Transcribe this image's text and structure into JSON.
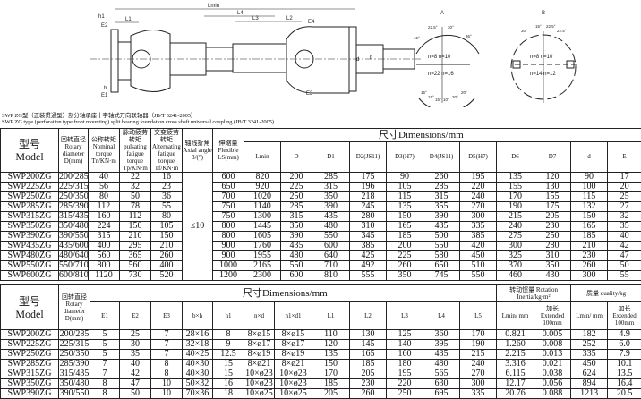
{
  "drawing": {
    "labels": {
      "lmin": "Lmin",
      "l1": "L1",
      "l2": "L2",
      "l3": "L3",
      "l4": "L4",
      "h1": "h1",
      "e2": "E2",
      "e4": "E4",
      "e1": "E1",
      "e3": "E3",
      "h": "h",
      "d": "d",
      "b": "b"
    },
    "view_a": {
      "title": "A",
      "upper": "n=8  n=10",
      "lower": "n=22 n=16",
      "angles": [
        "45°",
        "22.5°",
        "30°",
        "36°",
        "15°",
        "15°",
        "15°",
        "10°",
        "20°",
        "20°"
      ]
    },
    "view_b": {
      "title": "B",
      "upper": "n=8  n=10",
      "lower": "n=14 n=12",
      "angles": [
        "30°",
        "15°",
        "22.5°",
        "22.5°"
      ]
    }
  },
  "titles": {
    "cn": "SWP ZG型（正装贯通型）剖分轴承座十字轴式万向联轴器（JB/T 3241-2005）",
    "en": "SWP ZG type (perforation type front mounting) split bearing foundation cross shaft universal coupling (JB/T 3241-2005)"
  },
  "table1": {
    "headers": {
      "model_cn": "型号",
      "model_en": "Model",
      "rotary": "回转直径 Rotary diameter D(mm)",
      "nominal": "公称转矩 Nominal torque Tn/KN·m",
      "pulsating": "脉动疲劳转矩 pulsating fatigue torque Tp/KN·m",
      "alternating": "交变疲劳转矩 Alternating fatigue torque Tf/KN·m",
      "axial": "轴线折角 Axial angle β/(°)",
      "flexible": "伸缩量 Flexible LS(mm)",
      "dimensions": "尺寸Dimensions/mm",
      "cols": [
        "Lmin",
        "D",
        "D1",
        "D2(JS11)",
        "D3(H7)",
        "D4(JS11)",
        "D5(H7)",
        "D6",
        "D7",
        "d",
        "E"
      ]
    },
    "axial_value": "≤10",
    "rows": [
      [
        "SWP200ZG",
        "200/285",
        "40",
        "22",
        "16",
        "600",
        "820",
        "200",
        "285",
        "175",
        "90",
        "260",
        "195",
        "135",
        "120",
        "90",
        "17"
      ],
      [
        "SWP225ZG",
        "225/315",
        "56",
        "32",
        "23",
        "650",
        "920",
        "225",
        "315",
        "196",
        "105",
        "285",
        "220",
        "155",
        "130",
        "100",
        "20"
      ],
      [
        "SWP250ZG",
        "250/350",
        "80",
        "50",
        "36",
        "700",
        "1020",
        "250",
        "350",
        "218",
        "115",
        "315",
        "240",
        "170",
        "155",
        "115",
        "25"
      ],
      [
        "SWP285ZG",
        "285/390",
        "112",
        "78",
        "55",
        "750",
        "1140",
        "285",
        "390",
        "245",
        "135",
        "355",
        "270",
        "190",
        "175",
        "132",
        "27"
      ],
      [
        "SWP315ZG",
        "315/435",
        "160",
        "112",
        "80",
        "750",
        "1300",
        "315",
        "435",
        "280",
        "150",
        "390",
        "300",
        "215",
        "205",
        "150",
        "32"
      ],
      [
        "SWP350ZG",
        "350/480",
        "224",
        "150",
        "105",
        "800",
        "1445",
        "350",
        "480",
        "310",
        "165",
        "435",
        "335",
        "240",
        "230",
        "165",
        "35"
      ],
      [
        "SWP390ZG",
        "390/550",
        "315",
        "210",
        "150",
        "800",
        "1605",
        "390",
        "550",
        "345",
        "185",
        "500",
        "385",
        "275",
        "250",
        "185",
        "40"
      ],
      [
        "SWP435ZG",
        "435/600",
        "400",
        "295",
        "210",
        "900",
        "1760",
        "435",
        "600",
        "385",
        "200",
        "550",
        "420",
        "300",
        "280",
        "210",
        "42"
      ],
      [
        "SWP480ZG",
        "480/640",
        "560",
        "365",
        "260",
        "900",
        "1955",
        "480",
        "640",
        "425",
        "225",
        "580",
        "450",
        "325",
        "310",
        "230",
        "47"
      ],
      [
        "SWP550ZG",
        "550/710",
        "800",
        "560",
        "400",
        "1000",
        "2165",
        "550",
        "710",
        "492",
        "260",
        "650",
        "510",
        "370",
        "350",
        "260",
        "50"
      ],
      [
        "SWP600ZG",
        "600/810",
        "1120",
        "730",
        "520",
        "1200",
        "2300",
        "600",
        "810",
        "555",
        "350",
        "745",
        "550",
        "460",
        "430",
        "300",
        "55"
      ]
    ]
  },
  "table2": {
    "headers": {
      "model_cn": "型号",
      "model_en": "Model",
      "rotary": "回转直径 Rotary diameter D(mm)",
      "dimensions": "尺寸Dimensions/mm",
      "inertia": "转动惯量 Rotation Inertia/kg·m²",
      "quality": "质量 quality/kg",
      "cols": [
        "E1",
        "E2",
        "E3",
        "b×h",
        "h1",
        "n×d",
        "n1×d1",
        "L1",
        "L2",
        "L3",
        "L4",
        "L5",
        "Lmin/ mm",
        "加长 Extended 100mm",
        "Lmin/ mm",
        "加长 Extended 100mm"
      ]
    },
    "rows": [
      [
        "SWP200ZG",
        "200/285",
        "5",
        "25",
        "7",
        "28×16",
        "8",
        "8×ø15",
        "8×ø15",
        "110",
        "130",
        "125",
        "360",
        "170",
        "0.821",
        "0.005",
        "182",
        "4.9"
      ],
      [
        "SWP225ZG",
        "225/315",
        "5",
        "30",
        "7",
        "32×18",
        "9",
        "8×ø17",
        "8×ø17",
        "120",
        "145",
        "140",
        "395",
        "190",
        "1.260",
        "0.008",
        "252",
        "6.0"
      ],
      [
        "SWP250ZG",
        "250/350",
        "5",
        "35",
        "7",
        "40×25",
        "12.5",
        "8×ø19",
        "8×ø19",
        "135",
        "165",
        "160",
        "435",
        "215",
        "2.215",
        "0.013",
        "335",
        "7.9"
      ],
      [
        "SWP285ZG",
        "285/390",
        "7",
        "40",
        "8",
        "40×30",
        "15",
        "8×ø21",
        "8×ø21",
        "150",
        "185",
        "180",
        "480",
        "240",
        "3.316",
        "0.021",
        "450",
        "10.1"
      ],
      [
        "SWP315ZG",
        "315/435",
        "7",
        "42",
        "8",
        "40×30",
        "15",
        "10×ø23",
        "10×ø23",
        "170",
        "205",
        "195",
        "565",
        "270",
        "6.115",
        "0.038",
        "624",
        "13.5"
      ],
      [
        "SWP350ZG",
        "350/480",
        "8",
        "47",
        "10",
        "50×32",
        "16",
        "10×ø23",
        "10×ø23",
        "185",
        "230",
        "220",
        "630",
        "300",
        "12.17",
        "0.056",
        "894",
        "16.4"
      ],
      [
        "SWP390ZG",
        "390/550",
        "8",
        "50",
        "10",
        "70×36",
        "18",
        "10×ø25",
        "10×ø25",
        "205",
        "260",
        "250",
        "695",
        "335",
        "20.76",
        "0.088",
        "1213",
        "20.5"
      ]
    ]
  }
}
